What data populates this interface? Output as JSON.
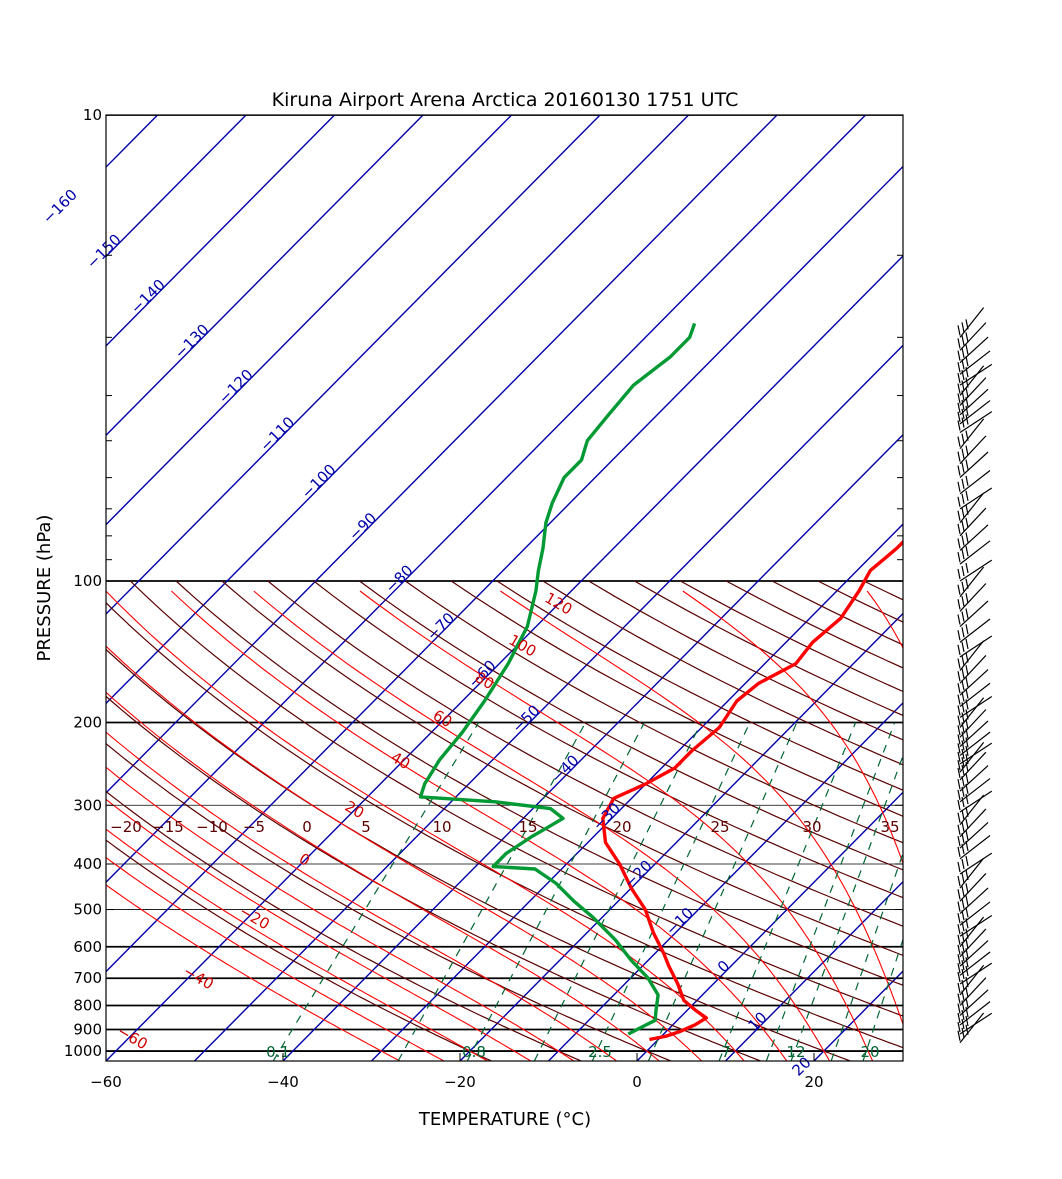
{
  "chart_data": {
    "type": "line",
    "chart_kind": "skew-T log-P sounding diagram",
    "title": "Kiruna Airport Arena Arctica 20160130 1751 UTC",
    "xlabel": "TEMPERATURE (°C)",
    "ylabel": "PRESSURE  (hPa)",
    "x_ticks": [
      "−60",
      "−40",
      "−20",
      "0",
      "20"
    ],
    "x_tick_values": [
      -60,
      -40,
      -20,
      0,
      20
    ],
    "xlim": [
      -60,
      30
    ],
    "y_scale": "log",
    "ylim": [
      1050,
      10
    ],
    "y_ticks": [
      "10",
      "100",
      "200",
      "300",
      "400",
      "500",
      "600",
      "700",
      "800",
      "900",
      "1000"
    ],
    "y_tick_values": [
      10,
      100,
      200,
      300,
      400,
      500,
      600,
      700,
      800,
      900,
      1000
    ],
    "isotherm_labels": [
      "−160",
      "−150",
      "−140",
      "−130",
      "−120",
      "−110",
      "−100",
      "−90",
      "−80",
      "−70",
      "−60",
      "−50",
      "−40",
      "−30",
      "−20",
      "−10",
      "0",
      "10",
      "20"
    ],
    "isotherm_label_values": [
      -160,
      -150,
      -140,
      -130,
      -120,
      -110,
      -100,
      -90,
      -80,
      -70,
      -60,
      -50,
      -40,
      -30,
      -20,
      -10,
      0,
      10,
      20
    ],
    "dry_adiabat_labels": [
      "120",
      "100",
      "80",
      "60",
      "40",
      "20",
      "0",
      "−20",
      "−40",
      "−60"
    ],
    "moist_adiabat_labels": [
      "−20",
      "−15",
      "−10",
      "−5",
      "0",
      "5",
      "10",
      "15",
      "20",
      "25",
      "30",
      "35"
    ],
    "mixing_ratio_labels": [
      "0.1",
      "0.8",
      "2.5",
      "7",
      "12",
      "20"
    ],
    "mixing_ratio_values": [
      0.1,
      0.8,
      2.5,
      7,
      12,
      20
    ],
    "series": [
      {
        "role": "temperature",
        "color": "#ff0000",
        "points": [
          {
            "p": 945,
            "t": -1
          },
          {
            "p": 930,
            "t": 0.5
          },
          {
            "p": 910,
            "t": 1.5
          },
          {
            "p": 880,
            "t": 2.5
          },
          {
            "p": 850,
            "t": 3
          },
          {
            "p": 820,
            "t": 1
          },
          {
            "p": 780,
            "t": -1.5
          },
          {
            "p": 720,
            "t": -4
          },
          {
            "p": 660,
            "t": -7
          },
          {
            "p": 620,
            "t": -9
          },
          {
            "p": 560,
            "t": -12.5
          },
          {
            "p": 500,
            "t": -16
          },
          {
            "p": 450,
            "t": -20
          },
          {
            "p": 400,
            "t": -24
          },
          {
            "p": 360,
            "t": -28
          },
          {
            "p": 320,
            "t": -31
          },
          {
            "p": 290,
            "t": -32
          },
          {
            "p": 270,
            "t": -30
          },
          {
            "p": 250,
            "t": -28.5
          },
          {
            "p": 230,
            "t": -28.5
          },
          {
            "p": 205,
            "t": -28
          },
          {
            "p": 180,
            "t": -29
          },
          {
            "p": 165,
            "t": -28.5
          },
          {
            "p": 150,
            "t": -26.5
          },
          {
            "p": 135,
            "t": -27
          },
          {
            "p": 120,
            "t": -26.5
          },
          {
            "p": 105,
            "t": -27.5
          },
          {
            "p": 95,
            "t": -28.5
          },
          {
            "p": 85,
            "t": -28
          },
          {
            "p": 75,
            "t": -28
          },
          {
            "p": 65,
            "t": -28
          },
          {
            "p": 56,
            "t": -29
          },
          {
            "p": 52,
            "t": -29
          },
          {
            "p": 48,
            "t": -31
          },
          {
            "p": 45,
            "t": -31
          },
          {
            "p": 42,
            "t": -29.5
          },
          {
            "p": 39,
            "t": -31
          },
          {
            "p": 35,
            "t": -33
          },
          {
            "p": 33,
            "t": -33
          },
          {
            "p": 29,
            "t": -30
          },
          {
            "p": 27,
            "t": -33.5
          }
        ]
      },
      {
        "role": "dewpoint",
        "color": "#009933",
        "points": [
          {
            "p": 920,
            "t": -4
          },
          {
            "p": 880,
            "t": -3
          },
          {
            "p": 860,
            "t": -2.5
          },
          {
            "p": 820,
            "t": -3.5
          },
          {
            "p": 760,
            "t": -5
          },
          {
            "p": 700,
            "t": -8
          },
          {
            "p": 640,
            "t": -12
          },
          {
            "p": 580,
            "t": -16
          },
          {
            "p": 520,
            "t": -21
          },
          {
            "p": 480,
            "t": -25
          },
          {
            "p": 440,
            "t": -29
          },
          {
            "p": 410,
            "t": -33
          },
          {
            "p": 405,
            "t": -38
          },
          {
            "p": 380,
            "t": -38
          },
          {
            "p": 350,
            "t": -37
          },
          {
            "p": 330,
            "t": -36
          },
          {
            "p": 320,
            "t": -35.5
          },
          {
            "p": 305,
            "t": -38
          },
          {
            "p": 295,
            "t": -45
          },
          {
            "p": 288,
            "t": -54
          },
          {
            "p": 270,
            "t": -55
          },
          {
            "p": 240,
            "t": -56
          },
          {
            "p": 210,
            "t": -56.5
          },
          {
            "p": 180,
            "t": -57.5
          },
          {
            "p": 150,
            "t": -59
          },
          {
            "p": 125,
            "t": -61
          },
          {
            "p": 105,
            "t": -64
          },
          {
            "p": 95,
            "t": -66
          },
          {
            "p": 85,
            "t": -68
          },
          {
            "p": 75,
            "t": -70.5
          },
          {
            "p": 68,
            "t": -72
          },
          {
            "p": 60,
            "t": -73.5
          },
          {
            "p": 55,
            "t": -73.5
          },
          {
            "p": 50,
            "t": -75
          },
          {
            "p": 44,
            "t": -75.5
          },
          {
            "p": 38,
            "t": -76
          },
          {
            "p": 33,
            "t": -75
          },
          {
            "p": 30,
            "t": -75
          },
          {
            "p": 28,
            "t": -76
          }
        ]
      }
    ],
    "wind_barbs": [
      {
        "p": 30
      },
      {
        "p": 32
      },
      {
        "p": 34
      },
      {
        "p": 36
      },
      {
        "p": 38
      },
      {
        "p": 40
      },
      {
        "p": 42
      },
      {
        "p": 44
      },
      {
        "p": 46
      },
      {
        "p": 48
      },
      {
        "p": 52
      },
      {
        "p": 56
      },
      {
        "p": 60
      },
      {
        "p": 65
      },
      {
        "p": 70
      },
      {
        "p": 75
      },
      {
        "p": 80
      },
      {
        "p": 86
      },
      {
        "p": 92
      },
      {
        "p": 100
      },
      {
        "p": 108
      },
      {
        "p": 116
      },
      {
        "p": 125
      },
      {
        "p": 135
      },
      {
        "p": 145
      },
      {
        "p": 155
      },
      {
        "p": 165
      },
      {
        "p": 175
      },
      {
        "p": 185
      },
      {
        "p": 195
      },
      {
        "p": 205
      },
      {
        "p": 215
      },
      {
        "p": 225
      },
      {
        "p": 235
      },
      {
        "p": 245
      },
      {
        "p": 255
      },
      {
        "p": 265
      },
      {
        "p": 280
      },
      {
        "p": 295
      },
      {
        "p": 310
      },
      {
        "p": 330
      },
      {
        "p": 350
      },
      {
        "p": 370
      },
      {
        "p": 390
      },
      {
        "p": 420
      },
      {
        "p": 450
      },
      {
        "p": 480
      },
      {
        "p": 510
      },
      {
        "p": 540
      },
      {
        "p": 570
      },
      {
        "p": 600
      },
      {
        "p": 630
      },
      {
        "p": 660
      },
      {
        "p": 690
      },
      {
        "p": 720
      },
      {
        "p": 760
      },
      {
        "p": 800
      },
      {
        "p": 840
      },
      {
        "p": 880
      },
      {
        "p": 920
      },
      {
        "p": 960
      }
    ]
  }
}
